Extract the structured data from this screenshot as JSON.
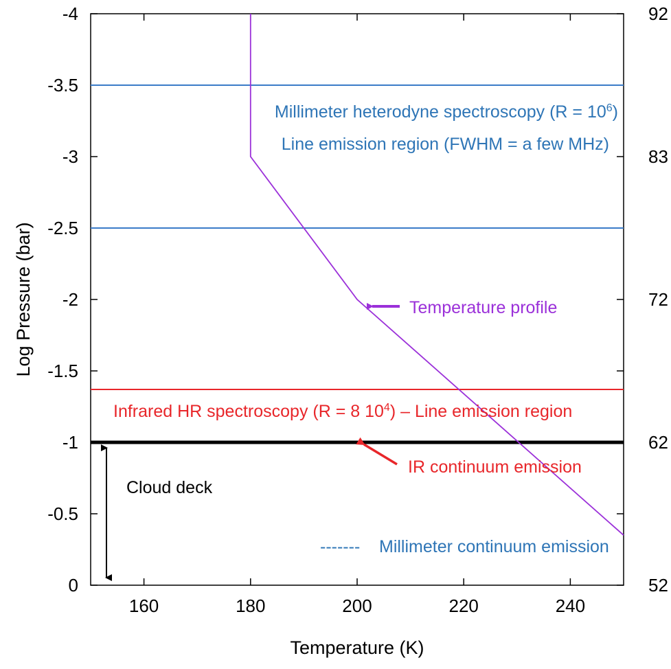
{
  "chart_data": {
    "type": "line",
    "xlabel": "Temperature (K)",
    "ylabel": "Log Pressure (bar)",
    "xlim": [
      150,
      250
    ],
    "ylim": [
      0,
      -4
    ],
    "y_reversed": true,
    "xticks": [
      160,
      180,
      200,
      220,
      240
    ],
    "yticks": [
      0,
      -0.5,
      -1,
      -1.5,
      -2,
      -2.5,
      -3,
      -3.5,
      -4
    ],
    "ytick_labels": [
      "0",
      "-0.5",
      "-1",
      "-1.5",
      "-2",
      "-2.5",
      "-3",
      "-3.5",
      "-4"
    ],
    "right_axis_labels": [
      {
        "y": -4,
        "text": "92"
      },
      {
        "y": -3,
        "text": "83"
      },
      {
        "y": -2,
        "text": "72"
      },
      {
        "y": -1,
        "text": "62"
      },
      {
        "y": 0,
        "text": "52"
      }
    ],
    "series": [
      {
        "name": "Temperature profile",
        "color": "#9b30d9",
        "x": [
          180,
          180,
          200,
          250
        ],
        "y": [
          -4,
          -3,
          -2,
          -0.35
        ]
      }
    ],
    "hlines": [
      {
        "y": -3.5,
        "color": "#3a7bc8",
        "role": "mm line region top"
      },
      {
        "y": -2.5,
        "color": "#3a7bc8",
        "role": "mm line region bottom"
      },
      {
        "y": -1.37,
        "color": "#e8262a",
        "role": "infrared line region"
      },
      {
        "y": -1,
        "color": "#000000",
        "role": "cloud deck top"
      }
    ],
    "cloud_deck_arrow": {
      "x": 153,
      "y_from": -1,
      "y_to": 0
    },
    "annotations": {
      "mm_heterodyne": "Millimeter heterodyne spectroscopy (R = 10",
      "mm_heterodyne_sup": "6",
      "mm_heterodyne_end": ")",
      "mm_line_region": "Line emission region (FWHM = a few MHz)",
      "temperature_profile": "Temperature profile",
      "ir_hr": "Infrared HR spectroscopy (R = 8 10",
      "ir_hr_sup": "4",
      "ir_hr_end": ") – Line emission region",
      "ir_continuum": "IR continuum emission",
      "cloud_deck": "Cloud deck",
      "mm_continuum_dash": "-------",
      "mm_continuum": "Millimeter continuum emission"
    },
    "colors": {
      "mm": "#2e75b6",
      "ir": "#e8262a",
      "profile": "#9b30d9",
      "cloud": "#000000"
    },
    "grid": false
  }
}
